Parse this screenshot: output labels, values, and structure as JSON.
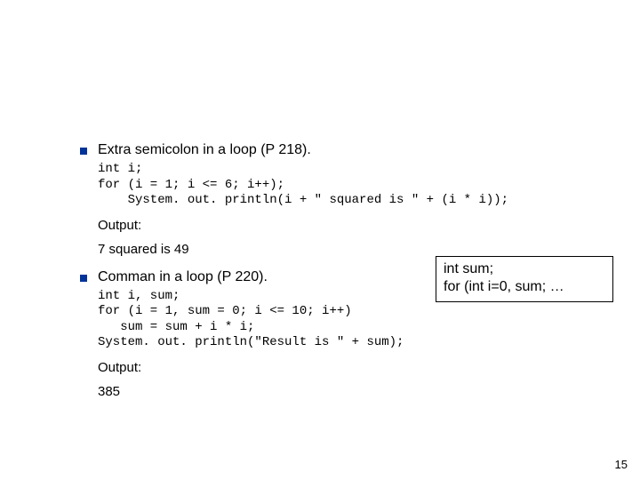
{
  "section1": {
    "heading": "Extra semicolon in a loop (P 218).",
    "code": "int i;\nfor (i = 1; i <= 6; i++);\n    System. out. println(i + \" squared is \" + (i * i));",
    "output_label": "Output:",
    "output_value": "7 squared is 49"
  },
  "section2": {
    "heading": "Comman in a loop (P 220).",
    "code": "int i, sum;\nfor (i = 1, sum = 0; i <= 10; i++)\n   sum = sum + i * i;\nSystem. out. println(\"Result is \" + sum);",
    "output_label": "Output:",
    "output_value": "385"
  },
  "callout": {
    "line1": "int sum;",
    "line2": "for (int i=0, sum; …"
  },
  "page_number": "15",
  "colors": {
    "bullet": "#003399",
    "text": "#000000",
    "background": "#ffffff",
    "box_border": "#000000"
  }
}
